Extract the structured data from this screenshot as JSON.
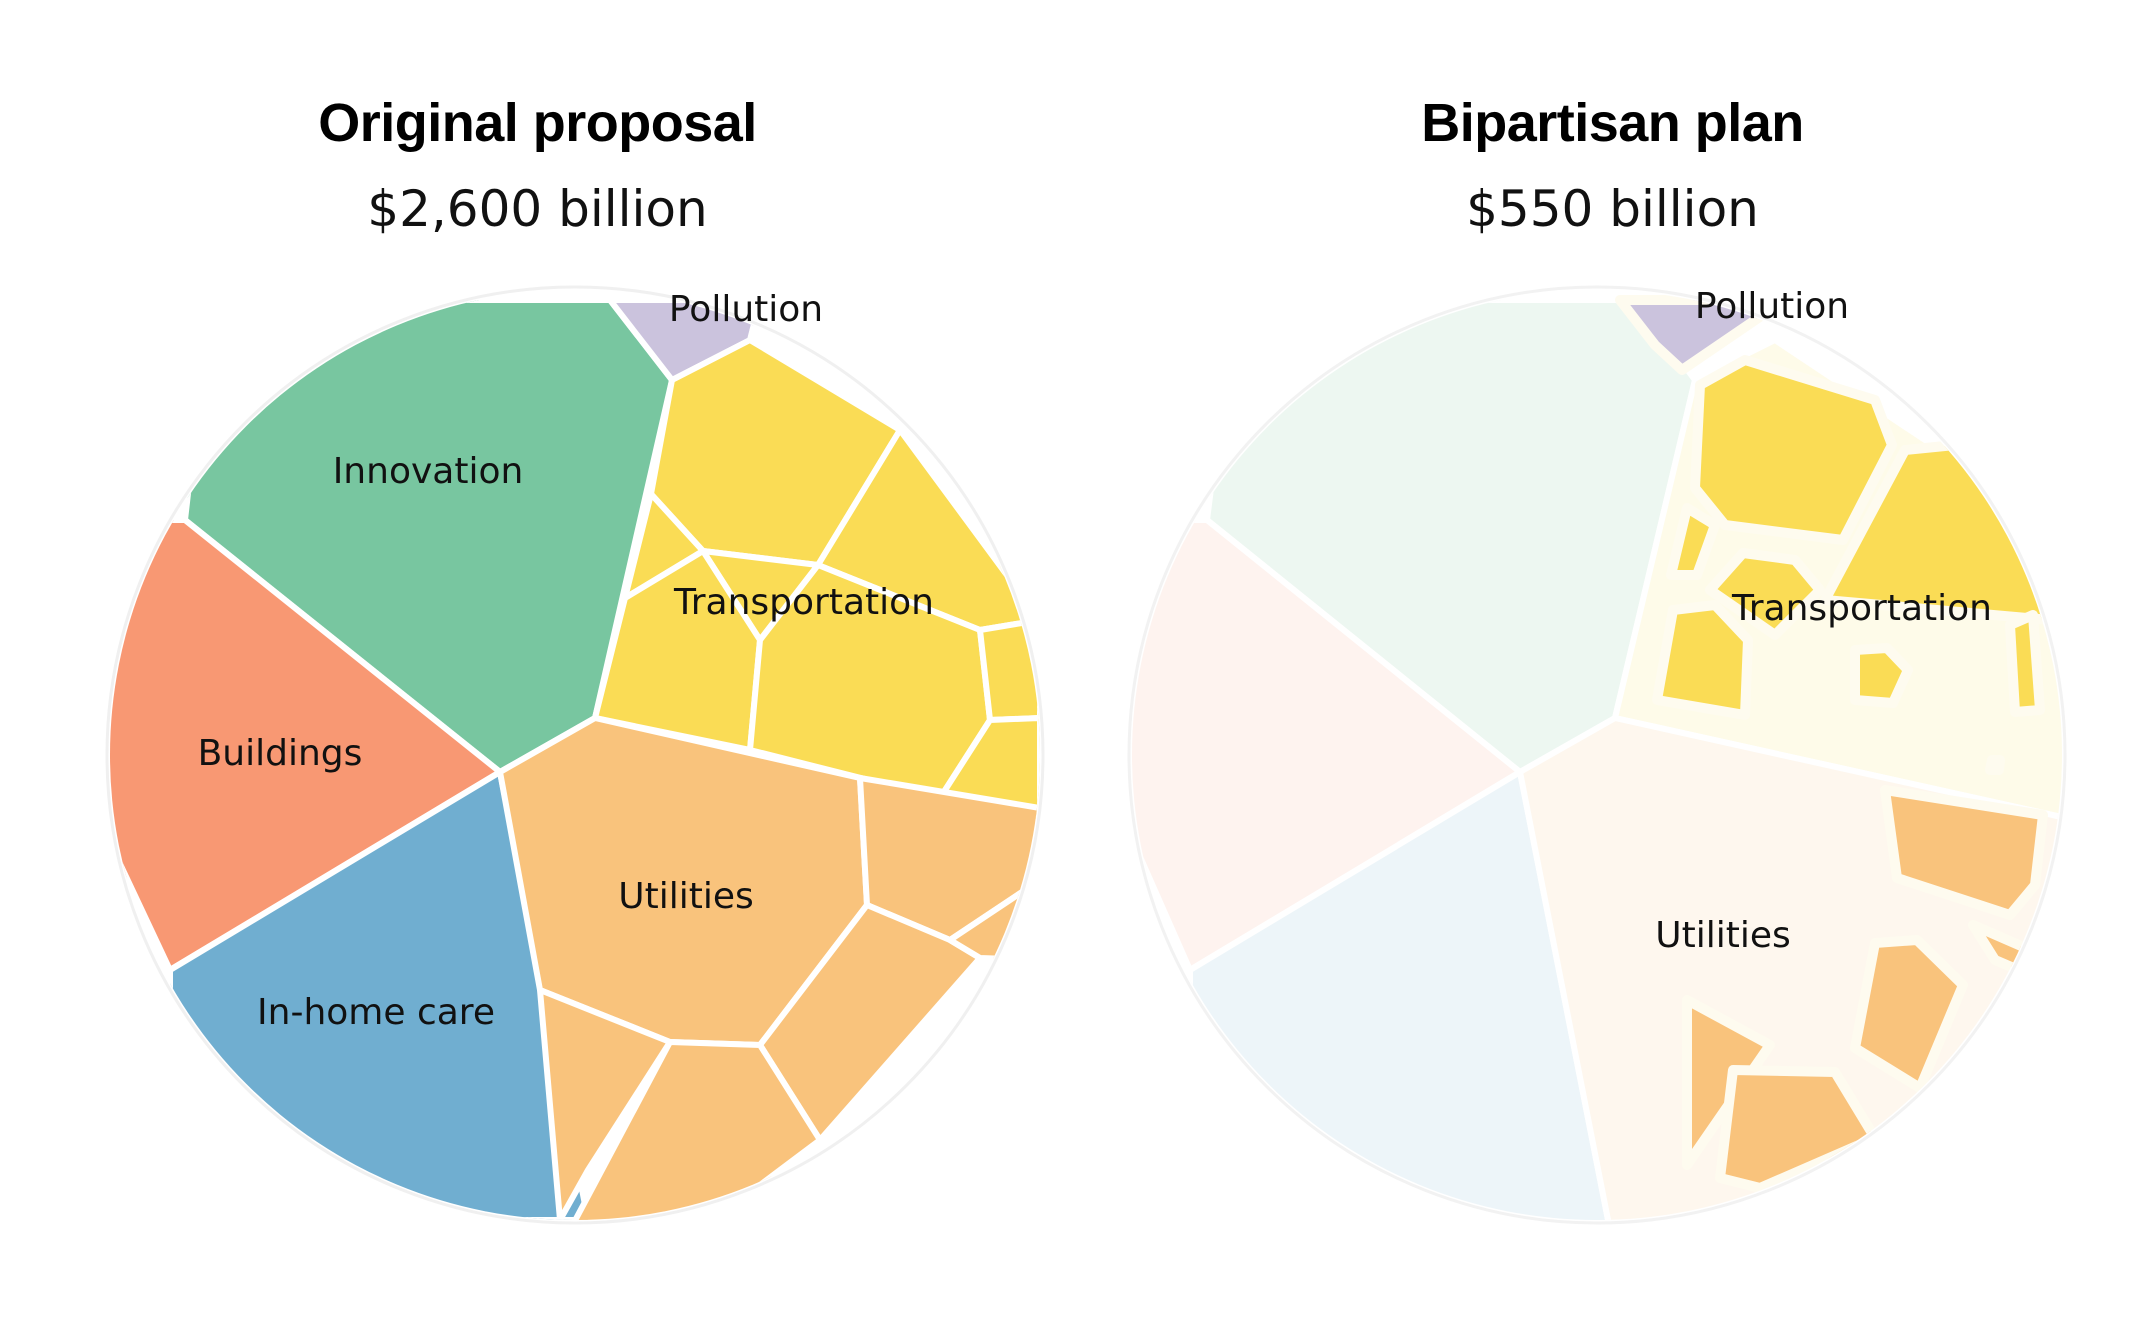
{
  "chart_data": [
    {
      "type": "voronoi-treemap",
      "title": "Original proposal",
      "subtitle": "$2,600 billion",
      "categories": [
        "Innovation",
        "Buildings",
        "In-home care",
        "Utilities",
        "Transportation",
        "Pollution"
      ],
      "colors": {
        "Innovation": "#78c6a0",
        "Buildings": "#f89873",
        "In-home care": "#70aed0",
        "Utilities": "#f9c37c",
        "Transportation": "#fadc55",
        "Pollution": "#cbc3dd"
      }
    },
    {
      "type": "voronoi-treemap",
      "title": "Bipartisan plan",
      "subtitle": "$550 billion",
      "labels": [
        "Pollution",
        "Transportation",
        "Utilities"
      ],
      "colors": {
        "Utilities": "#f9c37c",
        "Transportation": "#fadc55",
        "Pollution": "#cbc3dd",
        "Innovation (faded)": "#edf7f1",
        "Buildings (faded)": "#fef3ef",
        "In-home care (faded)": "#edf5f9",
        "Utilities (faded)": "#fef7ee",
        "Transportation (faded)": "#fefbe9"
      }
    }
  ]
}
